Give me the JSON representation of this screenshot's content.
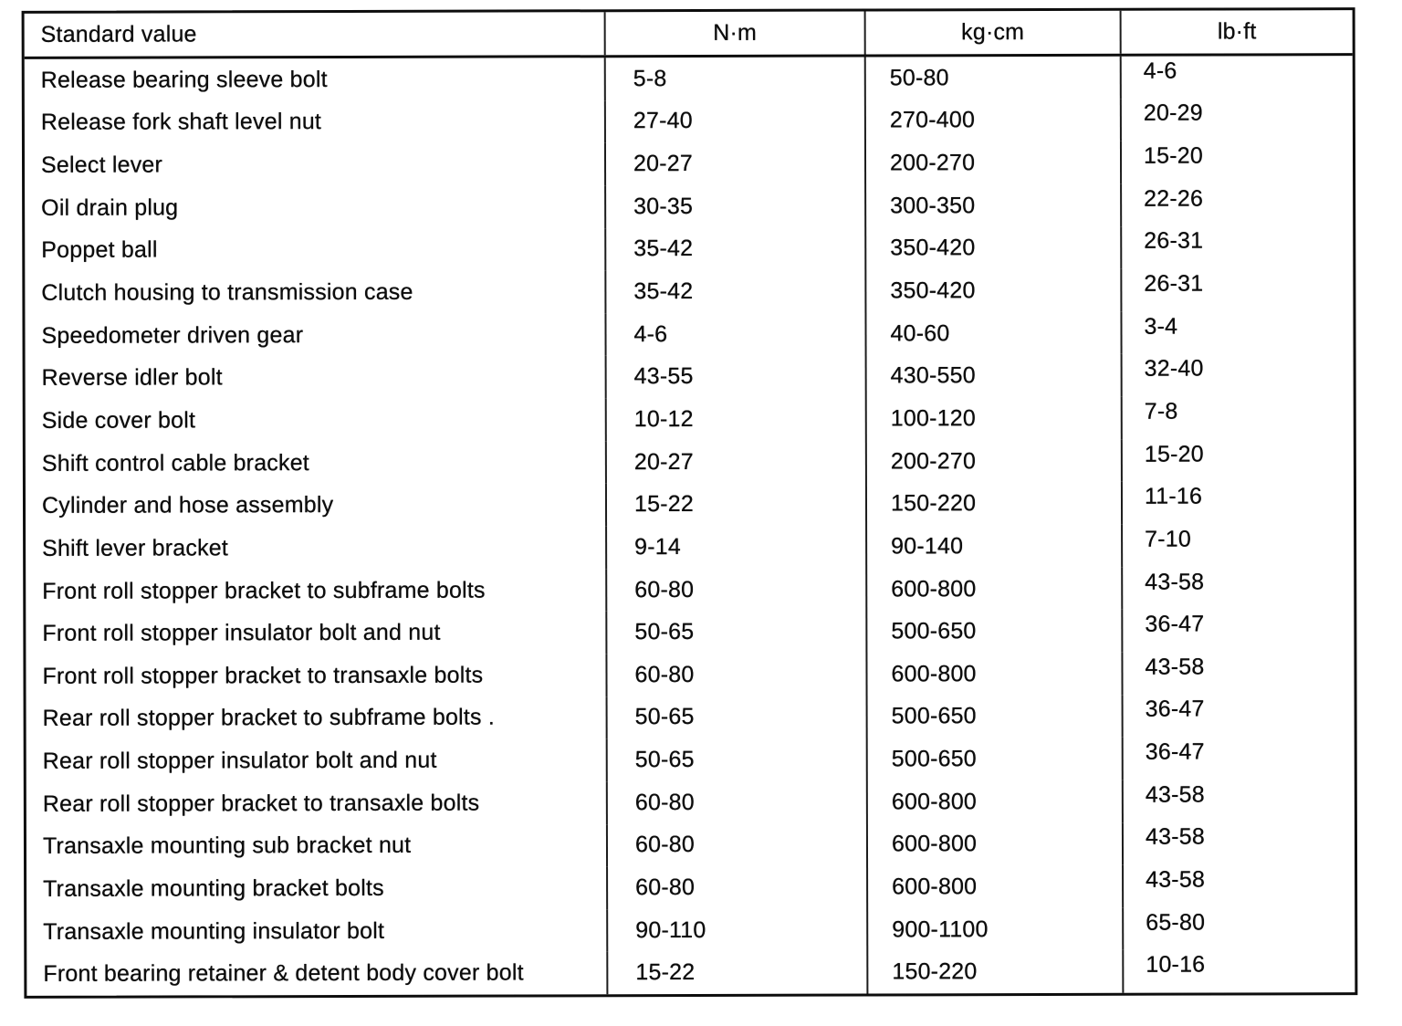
{
  "colors": {
    "paper": "#ffffff",
    "ink": "#0d0d0d"
  },
  "table": {
    "headers": [
      "Standard value",
      "N·m",
      "kg·cm",
      "lb·ft"
    ],
    "rows": [
      [
        "Release bearing sleeve bolt",
        "5-8",
        "50-80",
        "4-6"
      ],
      [
        "Release fork shaft level nut",
        "27-40",
        "270-400",
        "20-29"
      ],
      [
        "Select lever",
        "20-27",
        "200-270",
        "15-20"
      ],
      [
        "Oil drain plug",
        "30-35",
        "300-350",
        "22-26"
      ],
      [
        "Poppet ball",
        "35-42",
        "350-420",
        "26-31"
      ],
      [
        "Clutch housing to transmission case",
        "35-42",
        "350-420",
        "26-31"
      ],
      [
        "Speedometer driven gear",
        "4-6",
        "40-60",
        "3-4"
      ],
      [
        "Reverse idler bolt",
        "43-55",
        "430-550",
        "32-40"
      ],
      [
        "Side cover bolt",
        "10-12",
        "100-120",
        "7-8"
      ],
      [
        "Shift control cable bracket",
        "20-27",
        "200-270",
        "15-20"
      ],
      [
        "Cylinder and hose assembly",
        "15-22",
        "150-220",
        "11-16"
      ],
      [
        "Shift lever bracket",
        "9-14",
        "90-140",
        "7-10"
      ],
      [
        "Front roll stopper bracket to subframe bolts",
        "60-80",
        "600-800",
        "43-58"
      ],
      [
        "Front roll stopper insulator bolt and nut",
        "50-65",
        "500-650",
        "36-47"
      ],
      [
        "Front roll stopper bracket to transaxle bolts",
        "60-80",
        "600-800",
        "43-58"
      ],
      [
        "Rear roll stopper bracket to subframe bolts .",
        "50-65",
        "500-650",
        "36-47"
      ],
      [
        "Rear roll stopper insulator bolt and nut",
        "50-65",
        "500-650",
        "36-47"
      ],
      [
        "Rear roll stopper bracket to transaxle bolts",
        "60-80",
        "600-800",
        "43-58"
      ],
      [
        "Transaxle mounting sub bracket nut",
        "60-80",
        "600-800",
        "43-58"
      ],
      [
        "Transaxle mounting bracket bolts",
        "60-80",
        "600-800",
        "43-58"
      ],
      [
        "Transaxle mounting insulator bolt",
        "90-110",
        "900-1100",
        "65-80"
      ],
      [
        "Front bearing retainer & detent body cover bolt",
        "15-22",
        "150-220",
        "10-16"
      ]
    ]
  }
}
